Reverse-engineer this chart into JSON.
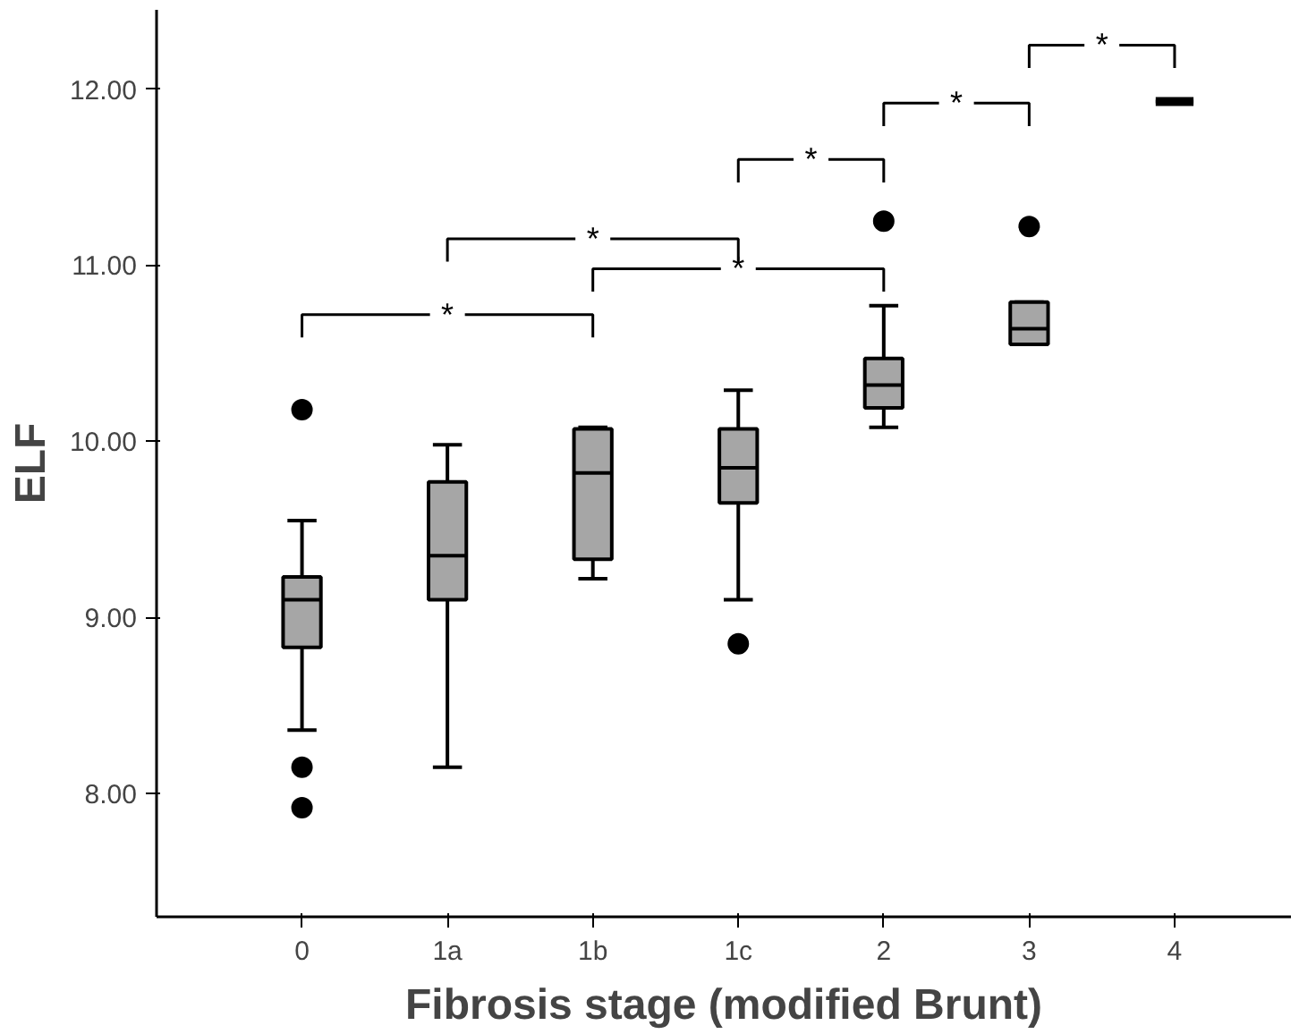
{
  "chart_data": {
    "type": "box",
    "xlabel": "Fibrosis stage (modified Brunt)",
    "ylabel": "ELF",
    "categories": [
      "0",
      "1a",
      "1b",
      "1c",
      "2",
      "3",
      "4"
    ],
    "colors": [
      "#a6a6a6",
      "#a6a6a6",
      "#a6a6a6",
      "#a6a6a6",
      "#a6a6a6",
      "#a6a6a6",
      "#000000"
    ],
    "boxes": [
      {
        "low": 8.36,
        "q1": 8.83,
        "median": 9.1,
        "q3": 9.23,
        "high": 9.55,
        "outliers": [
          10.18,
          8.15,
          7.92
        ]
      },
      {
        "low": 8.15,
        "q1": 9.1,
        "median": 9.35,
        "q3": 9.77,
        "high": 9.98
      },
      {
        "low": 9.22,
        "q1": 9.33,
        "median": 9.82,
        "q3": 10.07,
        "high": 10.08
      },
      {
        "low": 9.1,
        "q1": 9.65,
        "median": 9.85,
        "q3": 10.07,
        "high": 10.29,
        "outliers": [
          8.85
        ]
      },
      {
        "low": 10.08,
        "q1": 10.19,
        "median": 10.32,
        "q3": 10.47,
        "high": 10.77,
        "outliers": [
          11.25
        ]
      },
      {
        "low": 10.55,
        "q1": 10.55,
        "median": 10.64,
        "q3": 10.79,
        "high": 10.79,
        "outliers": [
          11.22
        ]
      },
      {
        "low": 11.93,
        "q1": 11.93,
        "median": 11.93,
        "q3": 11.93,
        "high": 11.93
      }
    ],
    "ylim": [
      7.3,
      12.45
    ],
    "yticks": [
      {
        "value": 8,
        "label": "8.00"
      },
      {
        "value": 9,
        "label": "9.00"
      },
      {
        "value": 10,
        "label": "10.00"
      },
      {
        "value": 11,
        "label": "11.00"
      },
      {
        "value": 12,
        "label": "12.00"
      }
    ],
    "grid": false,
    "annotations": [
      "*",
      "*",
      "*",
      "*",
      "*",
      "*"
    ]
  }
}
